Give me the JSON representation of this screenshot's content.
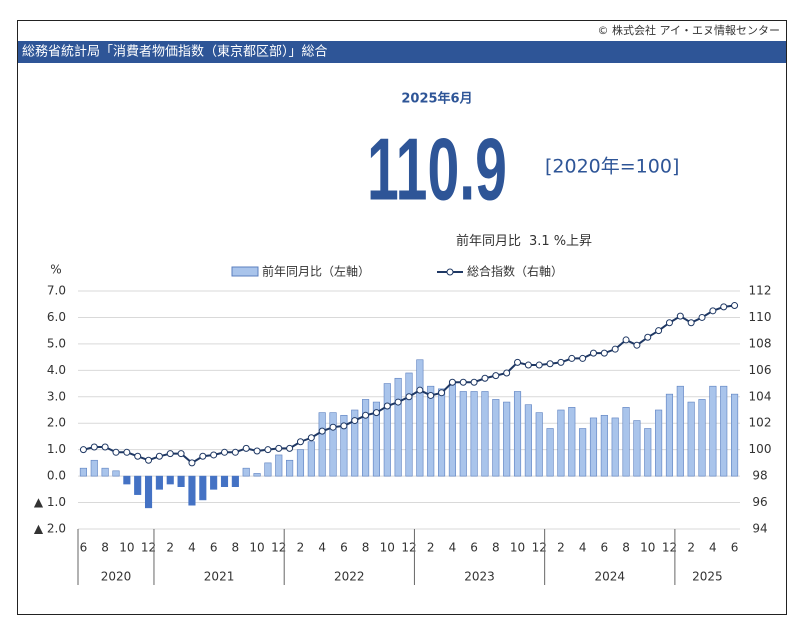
{
  "copyright": "© 株式会社 アイ・エヌ情報センター",
  "header": {
    "title": "総務省統計局「消費者物価指数（東京都区部）」総合"
  },
  "headline": {
    "period": "2025年6月",
    "value": 110.9,
    "base": "[2020年=100]",
    "yoy_label": "前年同月比",
    "yoy_value": 3.1,
    "yoy_suffix": "%上昇"
  },
  "chart_data": {
    "type": "bar_line",
    "y_unit": "%",
    "category_groups": [
      {
        "label": "2020",
        "categories": [
          "6",
          null,
          "8",
          null,
          "10",
          null,
          "12"
        ]
      },
      {
        "label": "2021",
        "categories": [
          null,
          "2",
          null,
          "4",
          null,
          "6",
          null,
          "8",
          null,
          "10",
          null,
          "12"
        ]
      },
      {
        "label": "2022",
        "categories": [
          null,
          "2",
          null,
          "4",
          null,
          "6",
          null,
          "8",
          null,
          "10",
          null,
          "12"
        ]
      },
      {
        "label": "2023",
        "categories": [
          null,
          "2",
          null,
          "4",
          null,
          "6",
          null,
          "8",
          null,
          "10",
          null,
          "12"
        ]
      },
      {
        "label": "2024",
        "categories": [
          null,
          "2",
          null,
          "4",
          null,
          "6",
          null,
          "8",
          null,
          "10",
          null,
          "12"
        ]
      },
      {
        "label": "2025",
        "categories": [
          null,
          "2",
          null,
          "4",
          null,
          "6"
        ]
      }
    ],
    "series": [
      {
        "name": "前年同月比（左軸）",
        "kind": "bar",
        "color": "#a9c4eb",
        "negative_color": "#4472c4",
        "axis": "y",
        "values": [
          0.3,
          0.6,
          0.3,
          0.2,
          -0.3,
          -0.7,
          -1.2,
          -0.5,
          -0.3,
          -0.4,
          -1.1,
          -0.9,
          -0.5,
          -0.4,
          -0.4,
          0.3,
          0.1,
          0.5,
          0.8,
          0.6,
          1.0,
          1.3,
          2.4,
          2.4,
          2.3,
          2.5,
          2.9,
          2.8,
          3.5,
          3.7,
          3.9,
          4.4,
          3.4,
          3.3,
          3.5,
          3.2,
          3.2,
          3.2,
          2.9,
          2.8,
          3.2,
          2.7,
          2.4,
          1.8,
          2.5,
          2.6,
          1.8,
          2.2,
          2.3,
          2.2,
          2.6,
          2.1,
          1.8,
          2.5,
          3.1,
          3.4,
          2.8,
          2.9,
          3.4,
          3.4,
          3.1
        ]
      },
      {
        "name": "総合指数（右軸）",
        "kind": "line",
        "color": "#1f3864",
        "axis": "y2",
        "values": [
          100.0,
          100.2,
          100.2,
          99.8,
          99.8,
          99.5,
          99.2,
          99.5,
          99.7,
          99.7,
          99.0,
          99.5,
          99.6,
          99.8,
          99.8,
          100.1,
          99.9,
          100.0,
          100.1,
          100.1,
          100.6,
          100.9,
          101.4,
          101.7,
          101.8,
          102.2,
          102.6,
          102.8,
          103.3,
          103.6,
          104.0,
          104.5,
          104.1,
          104.3,
          105.1,
          105.1,
          105.1,
          105.4,
          105.6,
          105.8,
          106.6,
          106.4,
          106.4,
          106.5,
          106.6,
          106.9,
          106.9,
          107.3,
          107.3,
          107.6,
          108.3,
          107.9,
          108.5,
          109.0,
          109.6,
          110.1,
          109.6,
          110.0,
          110.5,
          110.8,
          110.9
        ]
      }
    ],
    "ylim": [
      -2,
      7
    ],
    "yticks": [
      {
        "value": 7,
        "label": "7.0"
      },
      {
        "value": 6,
        "label": "6.0"
      },
      {
        "value": 5,
        "label": "5.0"
      },
      {
        "value": 4,
        "label": "4.0"
      },
      {
        "value": 3,
        "label": "3.0"
      },
      {
        "value": 2,
        "label": "2.0"
      },
      {
        "value": 1,
        "label": "1.0"
      },
      {
        "value": 0,
        "label": "0.0"
      },
      {
        "value": -1,
        "label": "▲ 1.0"
      },
      {
        "value": -2,
        "label": "▲ 2.0"
      }
    ],
    "y2lim": [
      94,
      112
    ],
    "y2ticks": [
      94,
      96,
      98,
      100,
      102,
      104,
      106,
      108,
      110,
      112
    ],
    "grid": true
  }
}
